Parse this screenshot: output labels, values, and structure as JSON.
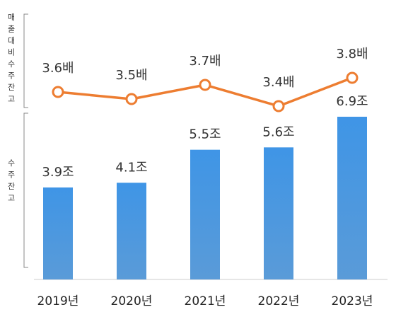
{
  "chart_data": {
    "type": "bar+line",
    "categories": [
      "2019년",
      "2020년",
      "2021년",
      "2022년",
      "2023년"
    ],
    "line_series": {
      "axis_label": "매출대비수주잔고",
      "values": [
        3.6,
        3.5,
        3.7,
        3.4,
        3.8
      ],
      "labels": [
        "3.6배",
        "3.5배",
        "3.7배",
        "3.4배",
        "3.8배"
      ],
      "color": "#ED7D31"
    },
    "bar_series": {
      "axis_label": "수주잔고",
      "values": [
        3.9,
        4.1,
        5.5,
        5.6,
        6.9
      ],
      "labels": [
        "3.9조",
        "4.1조",
        "5.5조",
        "5.6조",
        "6.9조"
      ],
      "color": "#4A9AE0"
    },
    "bar_ylim": [
      0,
      9
    ],
    "line_ylim": [
      3.0,
      4.2
    ],
    "grid": false,
    "legend": "none"
  }
}
